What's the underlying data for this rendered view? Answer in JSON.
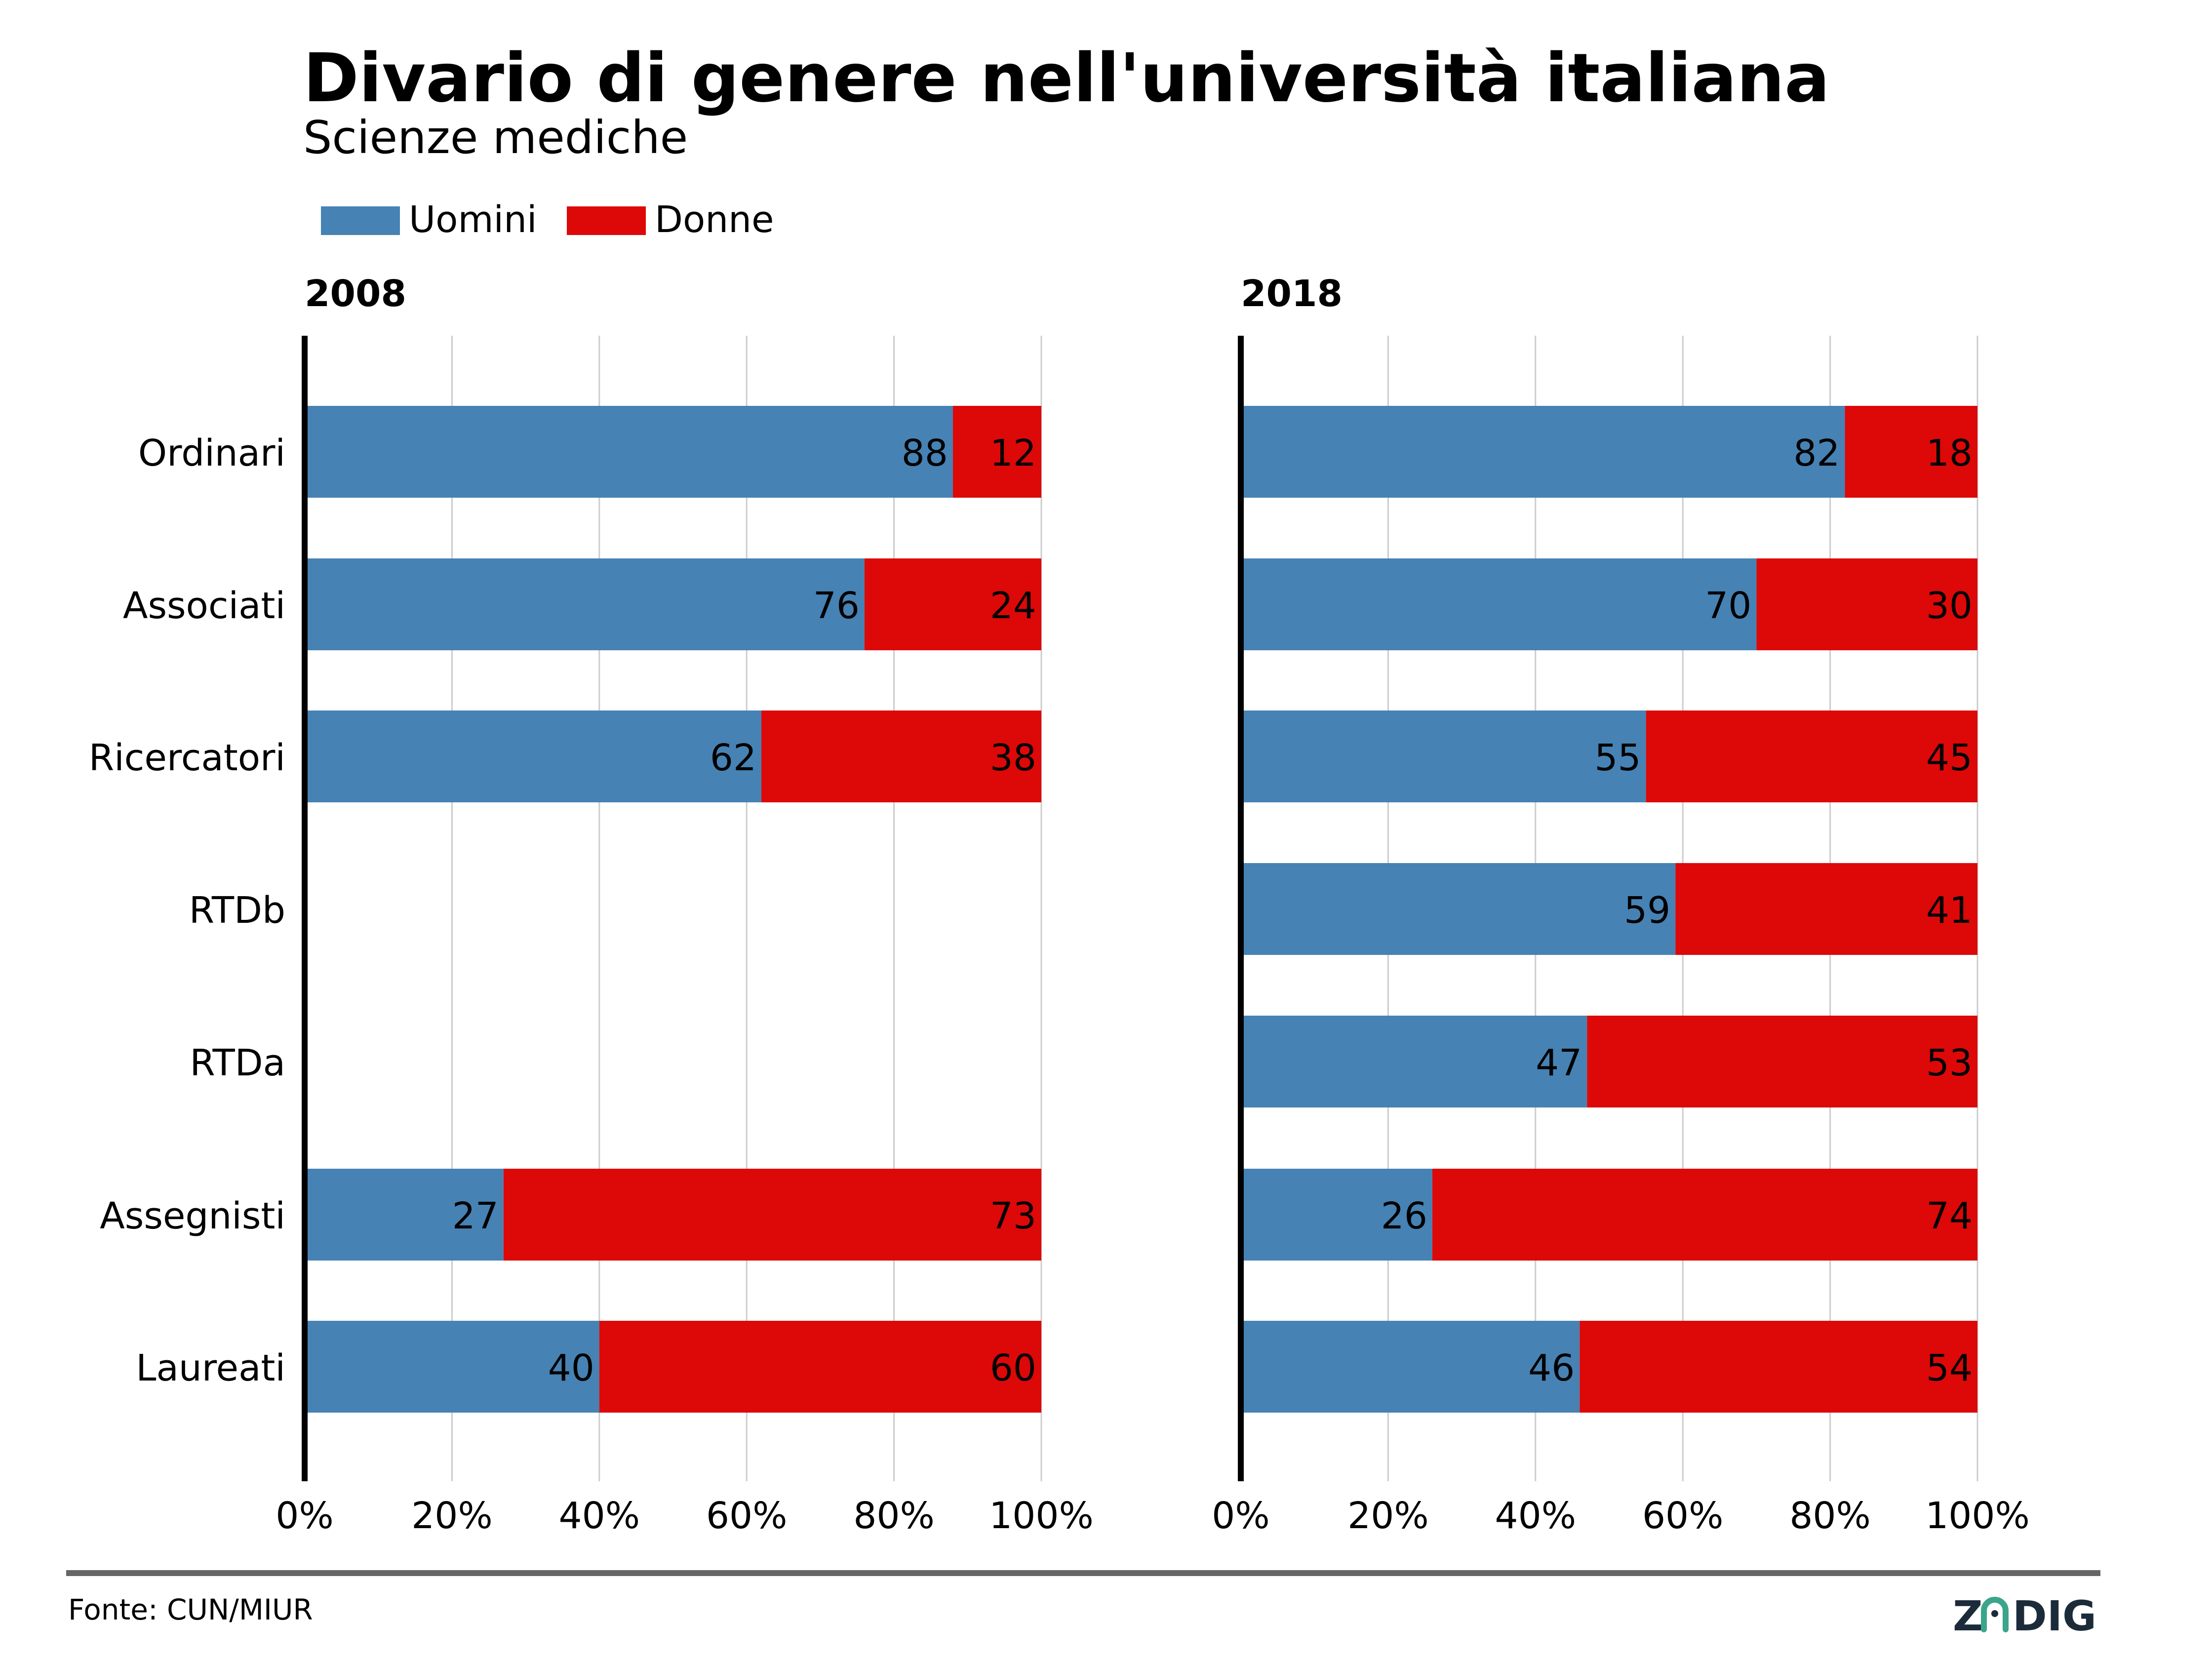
{
  "title": "Divario di genere nell'università italiana",
  "subtitle": "Scienze mediche",
  "source": "Fonte: CUN/MIUR",
  "brand": "ZADIG",
  "colors": {
    "uomini": "#4682B4",
    "donne": "#DD0808",
    "grid": "#cccccc",
    "axis": "#000000",
    "footer_rule": "#666666",
    "brand_text": "#1c2b3a",
    "brand_accent": "#3aa58a"
  },
  "chart_data": [
    {
      "type": "bar",
      "orientation": "horizontal",
      "stacked": true,
      "panel_title": "2008",
      "categories": [
        "Ordinari",
        "Associati",
        "Ricercatori",
        "RTDb",
        "RTDa",
        "Assegnisti",
        "Laureati"
      ],
      "series": [
        {
          "name": "Uomini",
          "values": [
            88,
            76,
            62,
            null,
            null,
            27,
            40
          ]
        },
        {
          "name": "Donne",
          "values": [
            12,
            24,
            38,
            null,
            null,
            73,
            60
          ]
        }
      ],
      "xlim": [
        0,
        100
      ],
      "x_ticks": [
        "0%",
        "20%",
        "40%",
        "60%",
        "80%",
        "100%"
      ],
      "grid": true,
      "legend": "top-left"
    },
    {
      "type": "bar",
      "orientation": "horizontal",
      "stacked": true,
      "panel_title": "2018",
      "categories": [
        "Ordinari",
        "Associati",
        "Ricercatori",
        "RTDb",
        "RTDa",
        "Assegnisti",
        "Laureati"
      ],
      "series": [
        {
          "name": "Uomini",
          "values": [
            82,
            70,
            55,
            59,
            47,
            26,
            46
          ]
        },
        {
          "name": "Donne",
          "values": [
            18,
            30,
            45,
            41,
            53,
            74,
            54
          ]
        }
      ],
      "xlim": [
        0,
        100
      ],
      "x_ticks": [
        "0%",
        "20%",
        "40%",
        "60%",
        "80%",
        "100%"
      ],
      "grid": true
    }
  ]
}
